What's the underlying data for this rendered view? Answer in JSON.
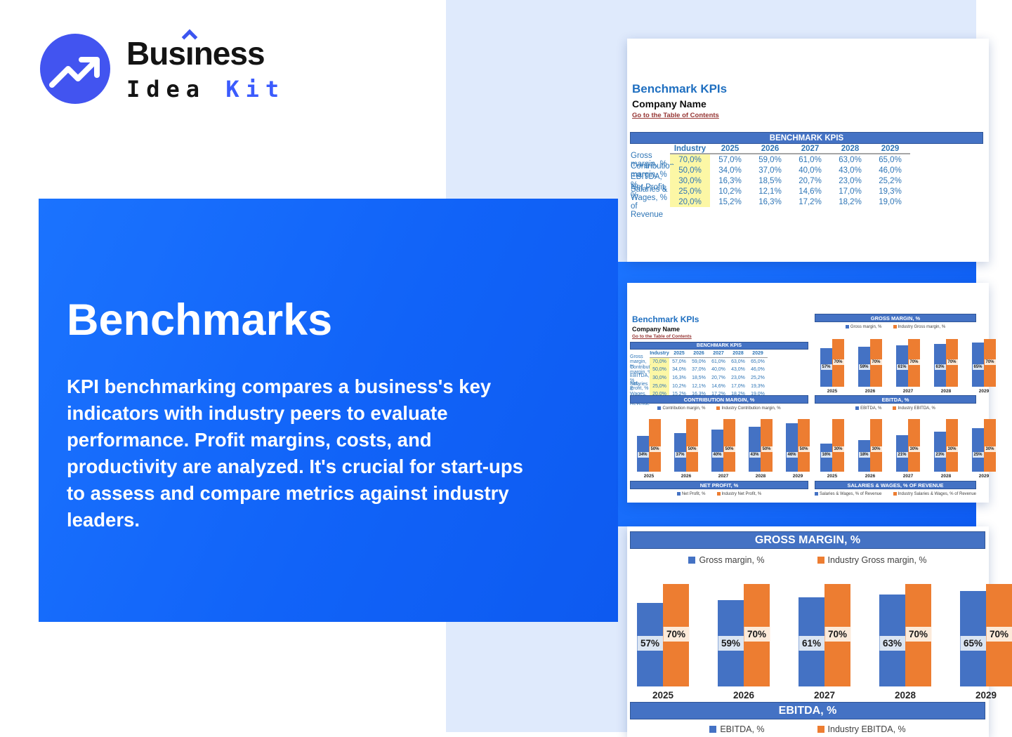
{
  "brand": {
    "word1_pre": "Bus",
    "word1_i": "i",
    "word1_post": "ness",
    "word2": "Idea",
    "word3": "Kit"
  },
  "hero": {
    "title": "Benchmarks",
    "description": "KPI benchmarking compares a business's key indicators with industry peers to evaluate performance. Profit margins, costs, and productivity are analyzed. It's crucial for start-ups to assess and compare metrics against industry leaders."
  },
  "sheet": {
    "title": "Benchmark KPIs",
    "company": "Company Name",
    "toc_link": "Go to the Table of Contents",
    "table_header": "BENCHMARK KPIS",
    "columns": [
      "Industry",
      "2025",
      "2026",
      "2027",
      "2028",
      "2029"
    ],
    "rows": [
      {
        "label": "Gross margin, %",
        "values": [
          "70,0%",
          "57,0%",
          "59,0%",
          "61,0%",
          "63,0%",
          "65,0%"
        ]
      },
      {
        "label": "Contribution margin, %",
        "values": [
          "50,0%",
          "34,0%",
          "37,0%",
          "40,0%",
          "43,0%",
          "46,0%"
        ]
      },
      {
        "label": "EBITDA, %",
        "values": [
          "30,0%",
          "16,3%",
          "18,5%",
          "20,7%",
          "23,0%",
          "25,2%"
        ]
      },
      {
        "label": "Net Profit, %",
        "values": [
          "25,0%",
          "10,2%",
          "12,1%",
          "14,6%",
          "17,0%",
          "19,3%"
        ]
      },
      {
        "label": "Salaries & Wages, % of Revenue",
        "values": [
          "20,0%",
          "15,2%",
          "16,3%",
          "17,2%",
          "18,2%",
          "19,0%"
        ]
      }
    ]
  },
  "chart_data": [
    {
      "id": "gross_margin_main",
      "type": "bar",
      "title": "GROSS MARGIN, %",
      "categories": [
        "2025",
        "2026",
        "2027",
        "2028",
        "2029"
      ],
      "series": [
        {
          "name": "Gross margin, %",
          "values": [
            57,
            59,
            61,
            63,
            65
          ]
        },
        {
          "name": "Industry Gross margin, %",
          "values": [
            70,
            70,
            70,
            70,
            70
          ]
        }
      ],
      "value_suffix": "%",
      "legend_position": "top",
      "ylim": [
        0,
        77
      ],
      "grid": false
    },
    {
      "id": "gross_margin_mini",
      "type": "bar",
      "title": "GROSS MARGIN, %",
      "categories": [
        "2025",
        "2026",
        "2027",
        "2028",
        "2029"
      ],
      "series": [
        {
          "name": "Gross margin, %",
          "values": [
            57,
            59,
            61,
            63,
            65
          ]
        },
        {
          "name": "Industry Gross margin, %",
          "values": [
            70,
            70,
            70,
            70,
            70
          ]
        }
      ],
      "value_suffix": "%",
      "legend_position": "top",
      "ylim": [
        0,
        80
      ],
      "grid": false
    },
    {
      "id": "contribution_margin_mini",
      "type": "bar",
      "title": "CONTRIBUTION MARGIN, %",
      "categories": [
        "2025",
        "2026",
        "2027",
        "2028",
        "2029"
      ],
      "series": [
        {
          "name": "Contribution margin, %",
          "values": [
            34,
            37,
            40,
            43,
            46
          ]
        },
        {
          "name": "Industry Contribution margin, %",
          "values": [
            50,
            50,
            50,
            50,
            50
          ]
        }
      ],
      "value_suffix": "%",
      "legend_position": "top",
      "ylim": [
        0,
        55
      ],
      "grid": false
    },
    {
      "id": "ebitda_mini",
      "type": "bar",
      "title": "EBITDA, %",
      "categories": [
        "2025",
        "2026",
        "2027",
        "2028",
        "2029"
      ],
      "series": [
        {
          "name": "EBITDA, %",
          "values": [
            16,
            18,
            21,
            23,
            25
          ]
        },
        {
          "name": "Industry EBITDA, %",
          "values": [
            30,
            30,
            30,
            30,
            30
          ]
        }
      ],
      "value_suffix": "%",
      "legend_position": "top",
      "ylim": [
        0,
        33
      ],
      "grid": false
    },
    {
      "id": "net_profit_mini",
      "type": "bar",
      "title": "NET PROFIT, %",
      "series": [
        {
          "name": "Net Profit, %"
        },
        {
          "name": "Industry Net Profit, %"
        }
      ],
      "legend_position": "top"
    },
    {
      "id": "salaries_wages_mini",
      "type": "bar",
      "title": "SALARIES & WAGES, % OF REVENUE",
      "series": [
        {
          "name": "Salaries & Wages, % of Revenue"
        },
        {
          "name": "Industry Salaries & Wages, % of Revenue"
        }
      ],
      "legend_position": "top"
    },
    {
      "id": "ebitda_main",
      "type": "bar",
      "title": "EBITDA, %",
      "series": [
        {
          "name": "EBITDA, %"
        },
        {
          "name": "Industry EBITDA, %"
        }
      ],
      "legend_position": "top"
    }
  ],
  "colors": {
    "hero_blue": "#1166fa",
    "light_background": "#dfeafc",
    "excel_header_blue": "#4472c4",
    "bar_blue": "#4472c4",
    "bar_orange": "#ed7d31",
    "highlight_yellow": "#fcf7a5",
    "link_red": "#963634",
    "table_text_blue": "#2e75b6",
    "logo_blue": "#4254f0",
    "kit_blue": "#3b5bfd"
  }
}
